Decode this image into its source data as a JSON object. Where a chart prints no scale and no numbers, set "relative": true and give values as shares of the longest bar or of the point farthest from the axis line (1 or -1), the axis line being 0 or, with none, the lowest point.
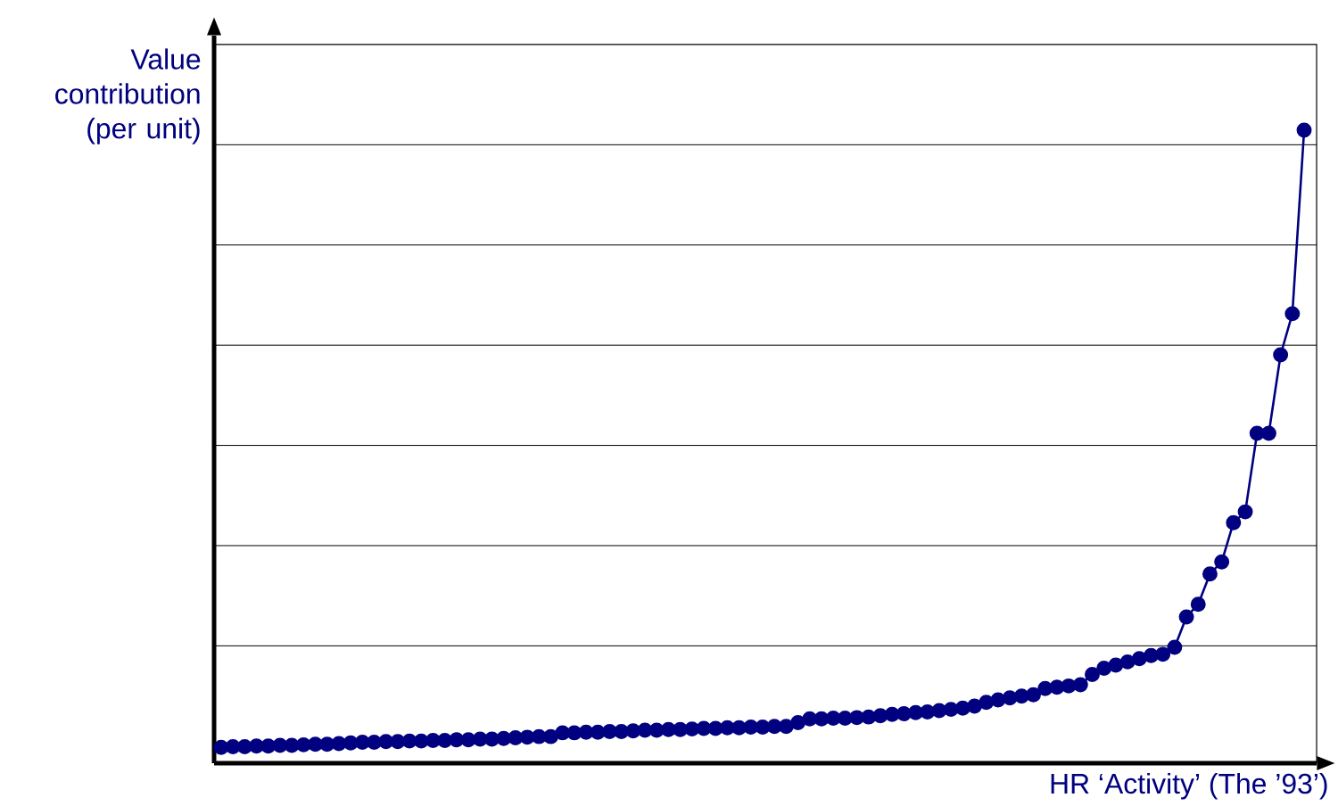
{
  "chart_data": {
    "type": "line",
    "relative": true,
    "xlabel": "HR ‘Activity’ (The ’93’)",
    "ylabel": "Value contribution (per unit)",
    "categories": [
      null,
      null,
      null,
      null,
      null,
      null,
      null,
      null,
      null,
      null,
      null,
      null,
      null,
      null,
      null,
      null,
      null,
      null,
      null,
      null,
      null,
      null,
      null,
      null,
      null,
      null,
      null,
      null,
      null,
      null,
      null,
      null,
      null,
      null,
      null,
      null,
      null,
      null,
      null,
      null,
      null,
      null,
      null,
      null,
      null,
      null,
      null,
      null,
      null,
      null,
      null,
      null,
      null,
      null,
      null,
      null,
      null,
      null,
      null,
      null,
      null,
      null,
      null,
      null,
      null,
      null,
      null,
      null,
      null,
      null,
      null,
      null,
      null,
      null,
      null,
      null,
      null,
      null,
      null,
      null,
      null,
      null,
      null,
      null,
      null,
      null,
      null,
      null,
      null,
      null,
      null,
      null,
      null
    ],
    "series": [
      {
        "color": "#000080",
        "values": [
          0.025,
          0.026,
          0.026,
          0.027,
          0.027,
          0.028,
          0.028,
          0.029,
          0.03,
          0.03,
          0.031,
          0.032,
          0.033,
          0.033,
          0.034,
          0.034,
          0.035,
          0.035,
          0.036,
          0.036,
          0.037,
          0.037,
          0.038,
          0.038,
          0.039,
          0.04,
          0.041,
          0.042,
          0.042,
          0.048,
          0.048,
          0.049,
          0.049,
          0.05,
          0.05,
          0.051,
          0.052,
          0.052,
          0.053,
          0.053,
          0.054,
          0.055,
          0.055,
          0.056,
          0.056,
          0.057,
          0.057,
          0.058,
          0.058,
          0.064,
          0.07,
          0.07,
          0.071,
          0.071,
          0.072,
          0.073,
          0.075,
          0.077,
          0.078,
          0.08,
          0.081,
          0.083,
          0.085,
          0.087,
          0.09,
          0.096,
          0.1,
          0.103,
          0.106,
          0.108,
          0.118,
          0.12,
          0.122,
          0.124,
          0.14,
          0.15,
          0.155,
          0.16,
          0.165,
          0.17,
          0.172,
          0.183,
          0.231,
          0.251,
          0.299,
          0.318,
          0.38,
          0.397,
          0.521,
          0.521,
          0.645,
          0.71,
          1.0
        ]
      }
    ],
    "grid": true,
    "marker": "circle",
    "line_style": "solid"
  }
}
